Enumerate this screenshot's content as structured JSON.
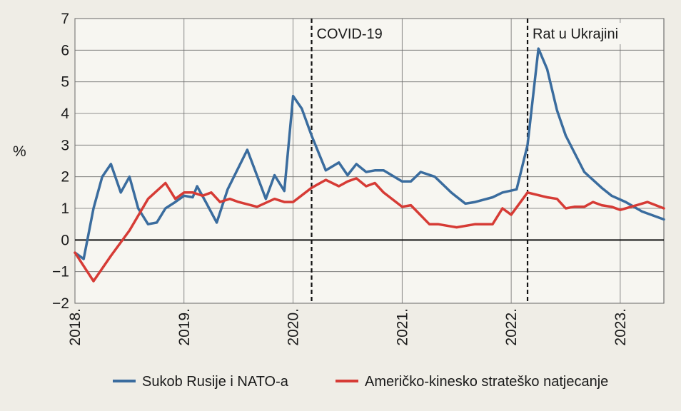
{
  "chart_data": {
    "type": "line",
    "ylabel": "%",
    "ylim": [
      -2,
      7
    ],
    "xlim": [
      2018.0,
      2023.4
    ],
    "yticks": [
      "−2",
      "−1",
      "0",
      "1",
      "2",
      "3",
      "4",
      "5",
      "6",
      "7"
    ],
    "ytick_values": [
      -2,
      -1,
      0,
      1,
      2,
      3,
      4,
      5,
      6,
      7
    ],
    "xticks": [
      "2018.",
      "2019.",
      "2020.",
      "2021.",
      "2022.",
      "2023."
    ],
    "xtick_values": [
      2018,
      2019,
      2020,
      2021,
      2022,
      2023
    ],
    "annotations": [
      {
        "label": "COVID-19",
        "x": 2020.17
      },
      {
        "label": "Rat u Ukrajini",
        "x": 2022.15
      }
    ],
    "series": [
      {
        "name": "Sukob Rusije i NATO-a",
        "color": "#3a6c9e",
        "x": [
          2018.0,
          2018.08,
          2018.17,
          2018.25,
          2018.33,
          2018.42,
          2018.5,
          2018.58,
          2018.67,
          2018.75,
          2018.83,
          2018.92,
          2019.0,
          2019.08,
          2019.12,
          2019.2,
          2019.3,
          2019.4,
          2019.58,
          2019.75,
          2019.83,
          2019.92,
          2020.0,
          2020.08,
          2020.17,
          2020.3,
          2020.42,
          2020.5,
          2020.58,
          2020.67,
          2020.75,
          2020.83,
          2021.0,
          2021.08,
          2021.17,
          2021.3,
          2021.45,
          2021.58,
          2021.67,
          2021.83,
          2021.92,
          2022.05,
          2022.15,
          2022.25,
          2022.33,
          2022.42,
          2022.5,
          2022.67,
          2022.83,
          2022.92,
          2023.05,
          2023.2,
          2023.4
        ],
        "y": [
          -0.4,
          -0.6,
          1.0,
          2.0,
          2.4,
          1.5,
          2.0,
          1.0,
          0.5,
          0.55,
          1.0,
          1.2,
          1.4,
          1.35,
          1.7,
          1.2,
          0.55,
          1.6,
          2.85,
          1.3,
          2.05,
          1.55,
          4.55,
          4.15,
          3.3,
          2.2,
          2.45,
          2.05,
          2.4,
          2.15,
          2.2,
          2.2,
          1.85,
          1.85,
          2.15,
          2.0,
          1.5,
          1.15,
          1.2,
          1.35,
          1.5,
          1.6,
          3.0,
          6.05,
          5.4,
          4.1,
          3.3,
          2.15,
          1.65,
          1.4,
          1.2,
          0.9,
          0.65
        ]
      },
      {
        "name": "Američko-kinesko strateško natjecanje",
        "color": "#d63b35",
        "x": [
          2018.0,
          2018.17,
          2018.33,
          2018.5,
          2018.67,
          2018.83,
          2018.92,
          2019.0,
          2019.08,
          2019.17,
          2019.25,
          2019.33,
          2019.42,
          2019.5,
          2019.67,
          2019.83,
          2019.92,
          2020.0,
          2020.17,
          2020.3,
          2020.42,
          2020.5,
          2020.58,
          2020.67,
          2020.75,
          2020.83,
          2021.0,
          2021.08,
          2021.25,
          2021.33,
          2021.5,
          2021.67,
          2021.83,
          2021.92,
          2022.0,
          2022.15,
          2022.33,
          2022.42,
          2022.5,
          2022.58,
          2022.67,
          2022.75,
          2022.83,
          2022.92,
          2023.0,
          2023.1,
          2023.25,
          2023.4
        ],
        "y": [
          -0.4,
          -1.3,
          -0.5,
          0.3,
          1.3,
          1.8,
          1.3,
          1.5,
          1.5,
          1.4,
          1.5,
          1.2,
          1.3,
          1.2,
          1.05,
          1.3,
          1.2,
          1.2,
          1.65,
          1.9,
          1.7,
          1.85,
          1.95,
          1.7,
          1.8,
          1.5,
          1.05,
          1.1,
          0.5,
          0.5,
          0.4,
          0.5,
          0.5,
          1.0,
          0.8,
          1.5,
          1.35,
          1.3,
          1.0,
          1.05,
          1.05,
          1.2,
          1.1,
          1.05,
          0.95,
          1.05,
          1.2,
          1.0
        ]
      }
    ]
  }
}
